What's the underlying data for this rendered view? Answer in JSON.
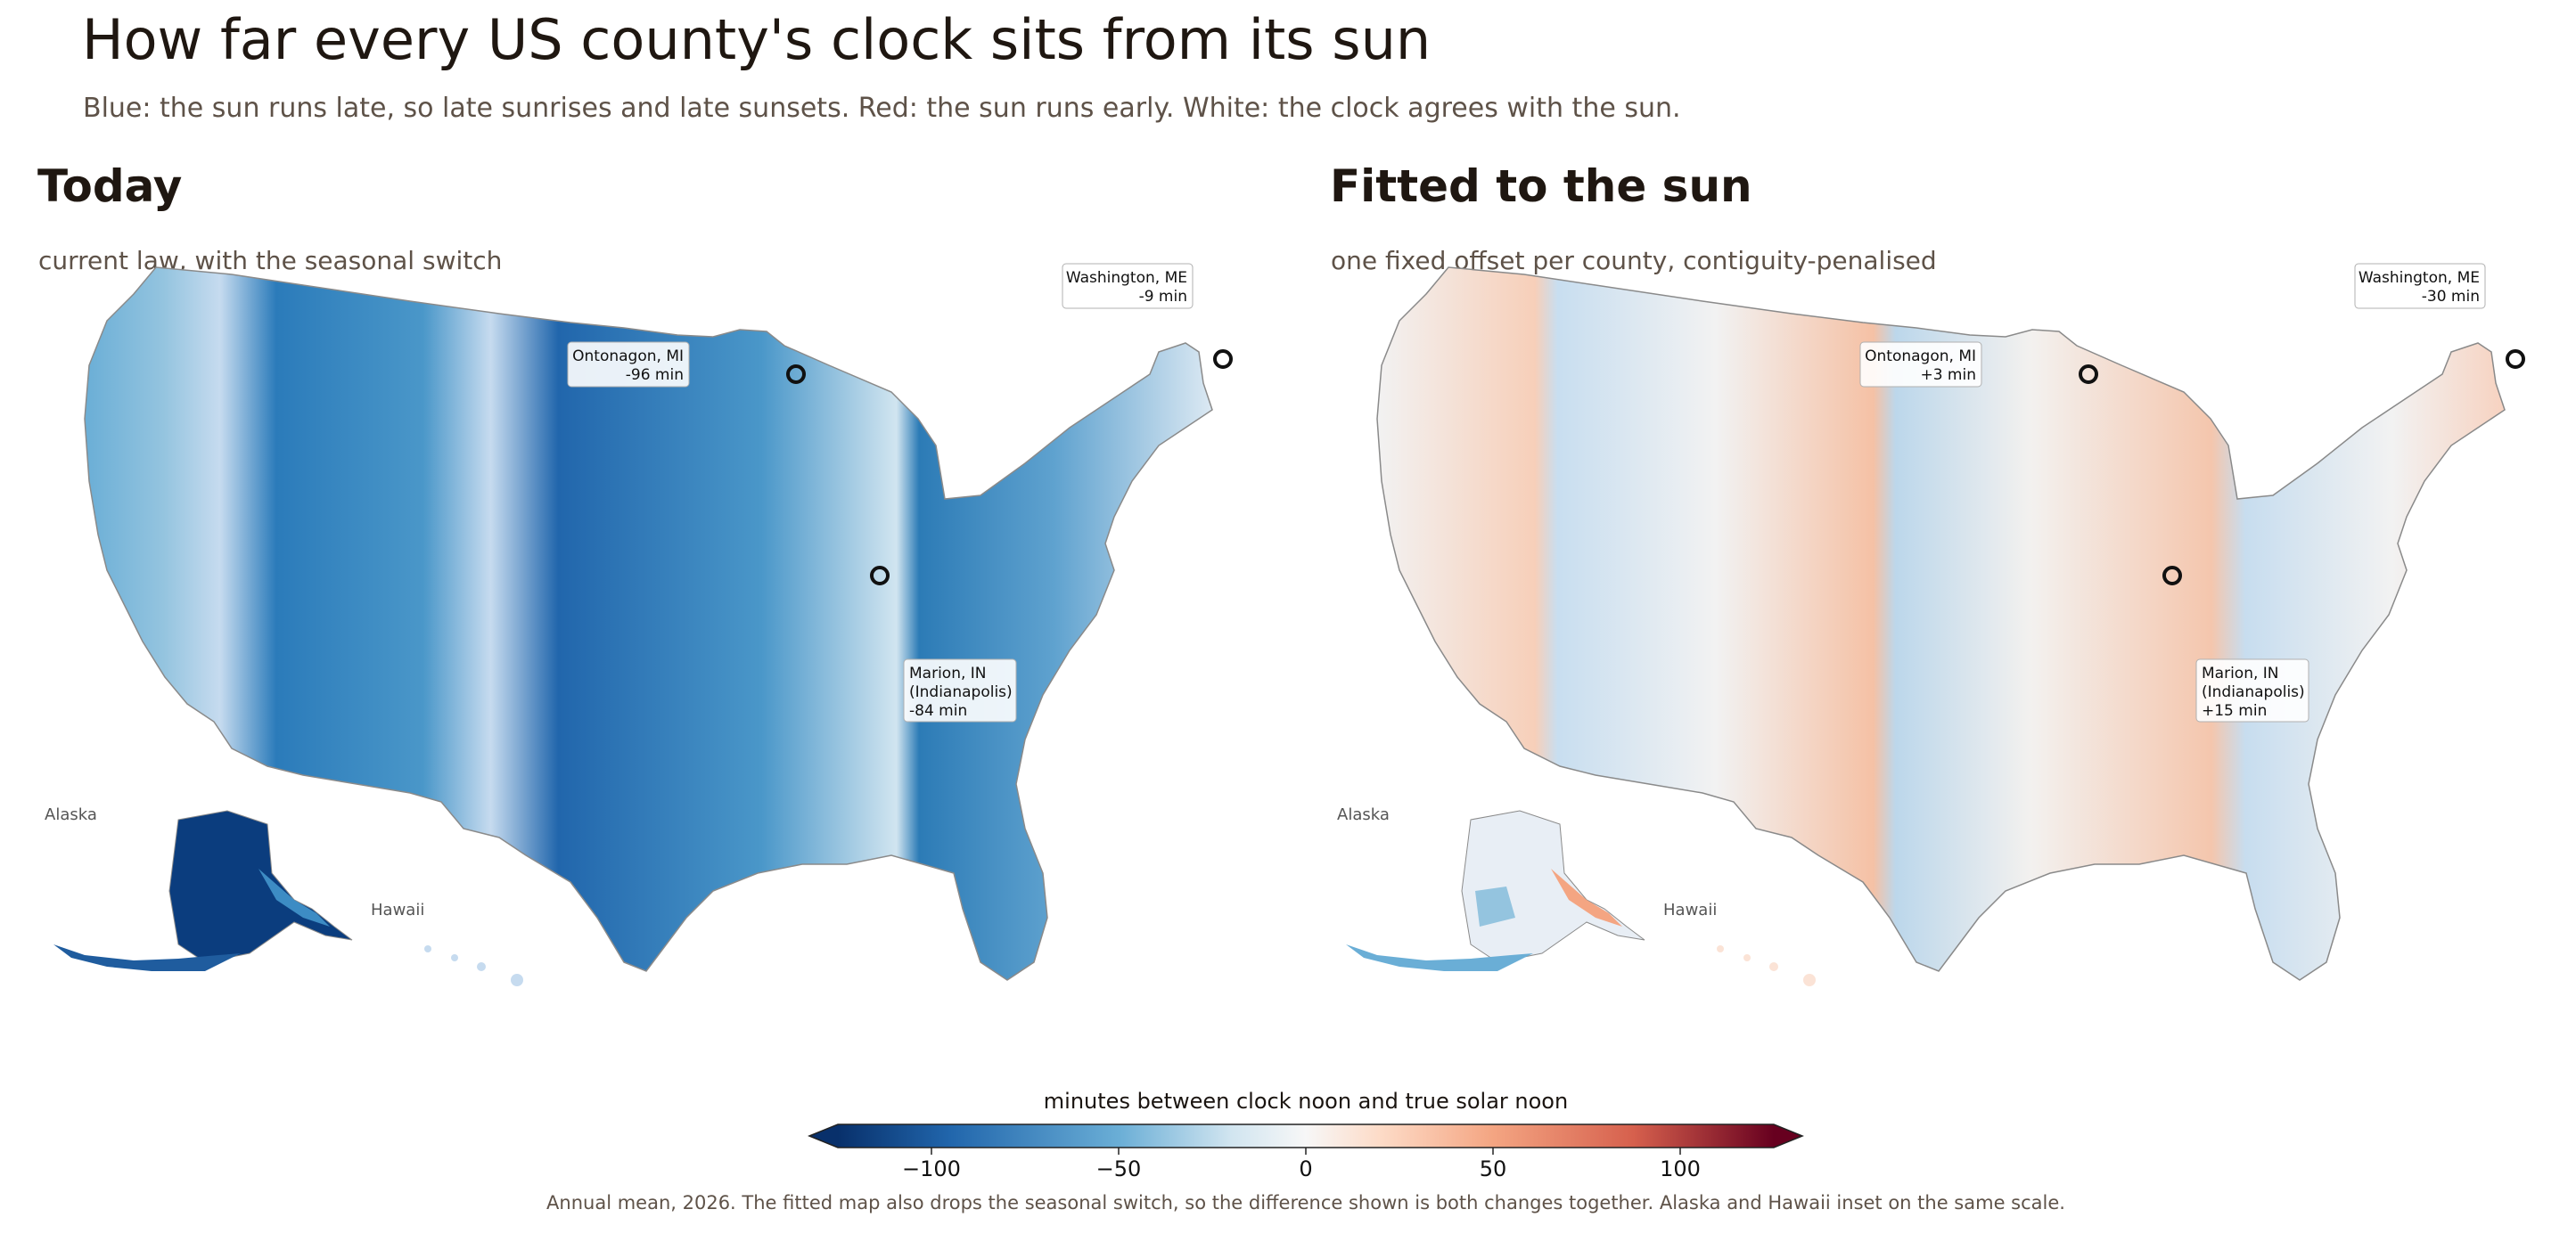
{
  "title": "How far every US county's clock sits from its sun",
  "subtitle": "Blue: the sun runs late, so late sunrises and late sunsets. Red: the sun runs early. White: the clock agrees with the sun.",
  "panels": [
    {
      "title": "Today",
      "subtitle": "current law, with the seasonal switch",
      "inset_labels": {
        "alaska": "Alaska",
        "hawaii": "Hawaii"
      },
      "callouts": [
        {
          "name": "Washington, ME",
          "value": "-9 min"
        },
        {
          "name": "Ontonagon, MI",
          "value": "-96 min"
        },
        {
          "name": "Marion, IN",
          "city": "(Indianapolis)",
          "value": "-84 min"
        }
      ]
    },
    {
      "title": "Fitted to the sun",
      "subtitle": "one fixed offset per county, contiguity-penalised",
      "inset_labels": {
        "alaska": "Alaska",
        "hawaii": "Hawaii"
      },
      "callouts": [
        {
          "name": "Washington, ME",
          "value": "-30 min"
        },
        {
          "name": "Ontonagon, MI",
          "value": "+3 min"
        },
        {
          "name": "Marion, IN",
          "city": "(Indianapolis)",
          "value": "+15 min"
        }
      ]
    }
  ],
  "colorbar": {
    "title": "minutes between clock noon and true solar noon",
    "min": -125,
    "max": 125,
    "ticks": [
      -100,
      -50,
      0,
      50,
      100
    ],
    "tick_labels": [
      "−100",
      "−50",
      "0",
      "50",
      "100"
    ],
    "colormap": "diverging blue-white-red",
    "colors": {
      "deep_blue": "#08306b",
      "white": "#f7f7f7",
      "deep_red": "#67001f"
    }
  },
  "footnote": "Annual mean, 2026. The fitted map also drops the seasonal switch, so the difference shown is both changes together. Alaska and Hawaii inset on the same scale."
}
